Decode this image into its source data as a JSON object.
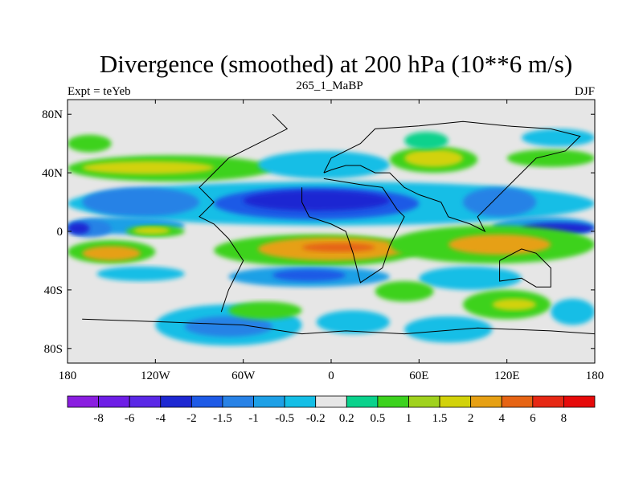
{
  "chart_data": {
    "type": "heatmap",
    "title": "Divergence (smoothed) at 200 hPa (10**6 m/s)",
    "subtitle": "265_1_MaBP",
    "left_label": "Expt = teYeb",
    "right_label": "DJF",
    "x_ticks": [
      "180",
      "120W",
      "60W",
      "0",
      "60E",
      "120E",
      "180"
    ],
    "x_tick_values": [
      -180,
      -120,
      -60,
      0,
      60,
      120,
      180
    ],
    "y_ticks": [
      "80N",
      "40N",
      "0",
      "40S",
      "80S"
    ],
    "y_tick_values": [
      80,
      40,
      0,
      -40,
      -80
    ],
    "xlim": [
      -180,
      180
    ],
    "ylim": [
      -90,
      90
    ],
    "colorbar": {
      "labels": [
        "-8",
        "-6",
        "-4",
        "-2",
        "-1.5",
        "-1",
        "-0.5",
        "-0.2",
        "0.2",
        "0.5",
        "1",
        "1.5",
        "2",
        "4",
        "6",
        "8"
      ],
      "colors": [
        "#8a1ee0",
        "#6e1ee6",
        "#5a28e6",
        "#1e28d2",
        "#1e5ae6",
        "#2882e6",
        "#1ea0e6",
        "#14bee6",
        "#e6e6e6",
        "#0ad28c",
        "#3cd21e",
        "#a0d21e",
        "#d2d20a",
        "#e6a014",
        "#e66414",
        "#e62814",
        "#e60a0a"
      ]
    },
    "regions": [
      {
        "name": "band-40n-green-pacific",
        "lon": [
          -180,
          -40
        ],
        "lat": [
          34,
          52
        ],
        "level": 10
      },
      {
        "name": "band-40n-yellow",
        "lon": [
          -170,
          -80
        ],
        "lat": [
          39,
          48
        ],
        "level": 12
      },
      {
        "name": "band-40n-cyan-atlantic",
        "lon": [
          -50,
          40
        ],
        "lat": [
          36,
          55
        ],
        "level": 7
      },
      {
        "name": "band-40n-green-asia",
        "lon": [
          40,
          100
        ],
        "lat": [
          40,
          58
        ],
        "level": 10
      },
      {
        "name": "band-40n-yellow-asia",
        "lon": [
          50,
          90
        ],
        "lat": [
          44,
          56
        ],
        "level": 12
      },
      {
        "name": "band-40n-green-npac",
        "lon": [
          120,
          180
        ],
        "lat": [
          44,
          56
        ],
        "level": 10
      },
      {
        "name": "arctic-green-a",
        "lon": [
          -180,
          -150
        ],
        "lat": [
          54,
          66
        ],
        "level": 10
      },
      {
        "name": "arctic-green-b",
        "lon": [
          50,
          80
        ],
        "lat": [
          56,
          68
        ],
        "level": 9
      },
      {
        "name": "arctic-cyan",
        "lon": [
          130,
          180
        ],
        "lat": [
          58,
          70
        ],
        "level": 7
      },
      {
        "name": "tropic-n-cyan-band",
        "lon": [
          -180,
          180
        ],
        "lat": [
          4,
          34
        ],
        "level": 7
      },
      {
        "name": "tropic-n-blue-a",
        "lon": [
          -170,
          -90
        ],
        "lat": [
          10,
          30
        ],
        "level": 5
      },
      {
        "name": "tropic-n-blue-b",
        "lon": [
          -80,
          60
        ],
        "lat": [
          8,
          30
        ],
        "level": 4
      },
      {
        "name": "tropic-n-blue-c",
        "lon": [
          90,
          140
        ],
        "lat": [
          10,
          30
        ],
        "level": 5
      },
      {
        "name": "tropic-n-darkblue",
        "lon": [
          -60,
          40
        ],
        "lat": [
          14,
          28
        ],
        "level": 3
      },
      {
        "name": "tropic-n-cyan-pacific",
        "lon": [
          -180,
          -100
        ],
        "lat": [
          -2,
          10
        ],
        "level": 6
      },
      {
        "name": "tropic-n-blue-pacific",
        "lon": [
          -180,
          -150
        ],
        "lat": [
          -4,
          8
        ],
        "level": 5
      },
      {
        "name": "tropic-n-darkblue-pacific",
        "lon": [
          -180,
          -165
        ],
        "lat": [
          -2,
          6
        ],
        "level": 3
      },
      {
        "name": "tropic-n-cyan-wpac",
        "lon": [
          110,
          180
        ],
        "lat": [
          -4,
          10
        ],
        "level": 6
      },
      {
        "name": "tropic-n-darkblue-wpac",
        "lon": [
          130,
          180
        ],
        "lat": [
          -2,
          6
        ],
        "level": 3
      },
      {
        "name": "itcz-green",
        "lon": [
          -140,
          -100
        ],
        "lat": [
          -4,
          4
        ],
        "level": 10
      },
      {
        "name": "itcz-yellow",
        "lon": [
          -135,
          -110
        ],
        "lat": [
          -2,
          3
        ],
        "level": 12
      },
      {
        "name": "sh-orange-band",
        "lon": [
          -180,
          -120
        ],
        "lat": [
          -22,
          -6
        ],
        "level": 10
      },
      {
        "name": "sh-orange-band-core",
        "lon": [
          -170,
          -130
        ],
        "lat": [
          -20,
          -10
        ],
        "level": 13
      },
      {
        "name": "sh-orange-africa",
        "lon": [
          -80,
          60
        ],
        "lat": [
          -24,
          -2
        ],
        "level": 10
      },
      {
        "name": "sh-orange-africa-core",
        "lon": [
          -50,
          50
        ],
        "lat": [
          -20,
          -4
        ],
        "level": 13
      },
      {
        "name": "sh-orange-asia",
        "lon": [
          40,
          180
        ],
        "lat": [
          -22,
          4
        ],
        "level": 10
      },
      {
        "name": "sh-orange-asia-core",
        "lon": [
          80,
          150
        ],
        "lat": [
          -16,
          -2
        ],
        "level": 13
      },
      {
        "name": "sh-red-spot",
        "lon": [
          -20,
          30
        ],
        "lat": [
          -14,
          -8
        ],
        "level": 14
      },
      {
        "name": "sh-cyan-a",
        "lon": [
          -160,
          -100
        ],
        "lat": [
          -34,
          -24
        ],
        "level": 7
      },
      {
        "name": "sh-cyan-b",
        "lon": [
          -70,
          40
        ],
        "lat": [
          -38,
          -24
        ],
        "level": 6
      },
      {
        "name": "sh-blue-b",
        "lon": [
          -40,
          10
        ],
        "lat": [
          -34,
          -26
        ],
        "level": 4
      },
      {
        "name": "sh-cyan-c",
        "lon": [
          60,
          130
        ],
        "lat": [
          -40,
          -24
        ],
        "level": 7
      },
      {
        "name": "sh-green-a",
        "lon": [
          30,
          70
        ],
        "lat": [
          -48,
          -34
        ],
        "level": 10
      },
      {
        "name": "sh-green-b",
        "lon": [
          90,
          150
        ],
        "lat": [
          -60,
          -40
        ],
        "level": 10
      },
      {
        "name": "sh-green-b-yellow",
        "lon": [
          110,
          140
        ],
        "lat": [
          -54,
          -46
        ],
        "level": 12
      },
      {
        "name": "sh-cyan-south-a",
        "lon": [
          -120,
          -20
        ],
        "lat": [
          -78,
          -50
        ],
        "level": 7
      },
      {
        "name": "sh-blue-south-a",
        "lon": [
          -100,
          -40
        ],
        "lat": [
          -72,
          -58
        ],
        "level": 5
      },
      {
        "name": "sh-green-south-a",
        "lon": [
          -70,
          -20
        ],
        "lat": [
          -60,
          -48
        ],
        "level": 10
      },
      {
        "name": "sh-cyan-south-b",
        "lon": [
          -10,
          40
        ],
        "lat": [
          -70,
          -54
        ],
        "level": 7
      },
      {
        "name": "sh-cyan-south-c",
        "lon": [
          50,
          110
        ],
        "lat": [
          -76,
          -58
        ],
        "level": 7
      },
      {
        "name": "sh-cyan-south-d",
        "lon": [
          150,
          180
        ],
        "lat": [
          -64,
          -46
        ],
        "level": 7
      }
    ],
    "coastlines": [
      [
        [
          -170,
          -60
        ],
        [
          -110,
          -62
        ],
        [
          -60,
          -64
        ],
        [
          -20,
          -70
        ],
        [
          10,
          -68
        ],
        [
          50,
          -70
        ],
        [
          100,
          -66
        ],
        [
          150,
          -68
        ],
        [
          180,
          -70
        ]
      ],
      [
        [
          -40,
          80
        ],
        [
          -30,
          70
        ],
        [
          -50,
          60
        ],
        [
          -70,
          50
        ],
        [
          -80,
          40
        ],
        [
          -90,
          30
        ],
        [
          -80,
          20
        ],
        [
          -90,
          10
        ],
        [
          -80,
          5
        ],
        [
          -70,
          -5
        ],
        [
          -60,
          -20
        ],
        [
          -70,
          -40
        ],
        [
          -75,
          -55
        ]
      ],
      [
        [
          -20,
          30
        ],
        [
          -20,
          20
        ],
        [
          -15,
          10
        ],
        [
          0,
          5
        ],
        [
          10,
          0
        ],
        [
          15,
          -15
        ],
        [
          20,
          -35
        ],
        [
          35,
          -25
        ],
        [
          40,
          -10
        ],
        [
          50,
          10
        ],
        [
          45,
          15
        ],
        [
          35,
          30
        ],
        [
          20,
          32
        ],
        [
          -5,
          36
        ]
      ],
      [
        [
          -5,
          40
        ],
        [
          0,
          50
        ],
        [
          10,
          55
        ],
        [
          20,
          60
        ],
        [
          30,
          70
        ],
        [
          60,
          72
        ],
        [
          90,
          75
        ],
        [
          120,
          72
        ],
        [
          150,
          70
        ],
        [
          170,
          65
        ],
        [
          160,
          55
        ],
        [
          140,
          50
        ],
        [
          130,
          40
        ],
        [
          120,
          30
        ],
        [
          110,
          20
        ],
        [
          100,
          10
        ],
        [
          105,
          0
        ],
        [
          95,
          5
        ],
        [
          80,
          10
        ],
        [
          75,
          20
        ],
        [
          60,
          25
        ],
        [
          50,
          30
        ],
        [
          40,
          40
        ],
        [
          30,
          40
        ],
        [
          20,
          45
        ],
        [
          10,
          45
        ],
        [
          0,
          42
        ],
        [
          -5,
          40
        ]
      ],
      [
        [
          115,
          -20
        ],
        [
          130,
          -12
        ],
        [
          140,
          -15
        ],
        [
          150,
          -25
        ],
        [
          150,
          -38
        ],
        [
          140,
          -38
        ],
        [
          130,
          -32
        ],
        [
          115,
          -34
        ],
        [
          115,
          -20
        ]
      ]
    ]
  }
}
